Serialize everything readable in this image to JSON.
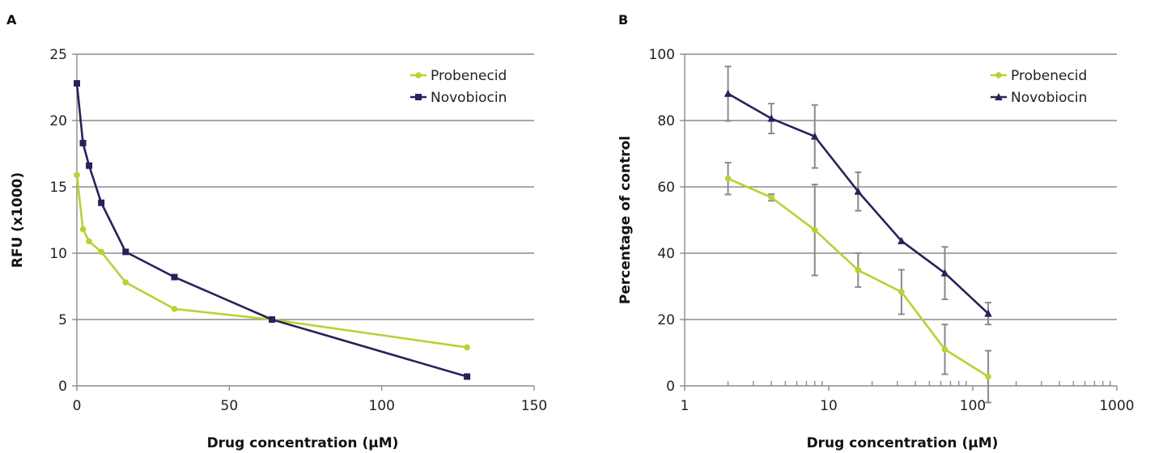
{
  "chart_data": [
    {
      "panel": "A",
      "type": "line",
      "xlabel": "Drug concentration (µM)",
      "ylabel": "RFU (x1000)",
      "xlim": [
        0,
        150
      ],
      "ylim": [
        0,
        25
      ],
      "xticks": [
        0,
        50,
        100,
        150
      ],
      "yticks": [
        0,
        5,
        10,
        15,
        20,
        25
      ],
      "x_scale": "linear",
      "grid": "horizontal",
      "legend_position": "top-right",
      "series": [
        {
          "name": "Probenecid",
          "color": "#b5d334",
          "marker": "circle",
          "x": [
            0,
            2,
            4,
            8,
            16,
            32,
            64,
            128
          ],
          "y": [
            15.9,
            11.8,
            10.9,
            10.1,
            7.8,
            5.8,
            5.0,
            2.9
          ]
        },
        {
          "name": "Novobiocin",
          "color": "#24245a",
          "marker": "square",
          "x": [
            0,
            2,
            4,
            8,
            16,
            32,
            64,
            128
          ],
          "y": [
            22.8,
            18.3,
            16.6,
            13.8,
            10.1,
            8.2,
            5.0,
            0.7
          ]
        }
      ]
    },
    {
      "panel": "B",
      "type": "line",
      "xlabel": "Drug concentration (µM)",
      "ylabel": "Percentage of control",
      "xlim": [
        1,
        1000
      ],
      "ylim": [
        0,
        100
      ],
      "xticks": [
        1,
        10,
        100,
        1000
      ],
      "yticks": [
        0,
        20,
        40,
        60,
        80,
        100
      ],
      "x_scale": "log",
      "grid": "horizontal",
      "legend_position": "top-right",
      "series": [
        {
          "name": "Probenecid",
          "color": "#b5d334",
          "marker": "circle",
          "x": [
            2,
            4,
            8,
            16,
            32,
            64,
            128
          ],
          "y": [
            62.5,
            56.8,
            47.0,
            34.9,
            28.3,
            11.0,
            2.8
          ],
          "error": [
            4.8,
            1.0,
            13.7,
            5.1,
            6.7,
            7.5,
            7.8
          ]
        },
        {
          "name": "Novobiocin",
          "color": "#24245a",
          "marker": "triangle",
          "x": [
            2,
            4,
            8,
            16,
            32,
            64,
            128
          ],
          "y": [
            88.1,
            80.6,
            75.2,
            58.6,
            43.7,
            34.0,
            21.8
          ],
          "error": [
            8.2,
            4.5,
            9.5,
            5.8,
            0,
            7.9,
            3.3
          ]
        }
      ]
    }
  ]
}
